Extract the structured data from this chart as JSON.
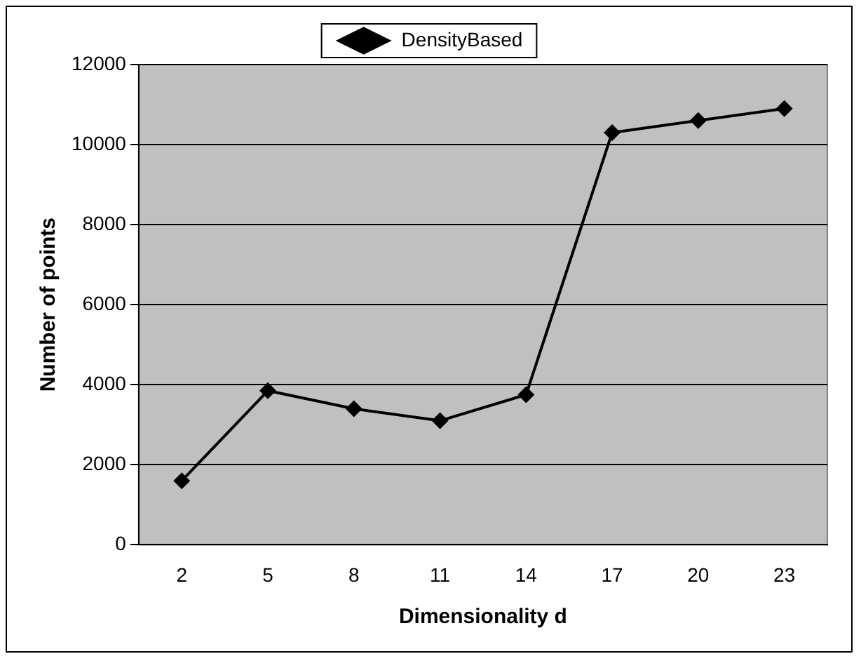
{
  "chart_data": {
    "type": "line",
    "xlabel": "Dimensionality d",
    "ylabel": "Number of points",
    "categories": [
      "2",
      "5",
      "8",
      "11",
      "14",
      "17",
      "20",
      "23"
    ],
    "series": [
      {
        "name": "DensityBased",
        "color": "#000000",
        "values": [
          1600,
          3850,
          3400,
          3100,
          3750,
          10300,
          10600,
          10900
        ]
      }
    ],
    "ylim": [
      0,
      12000
    ],
    "yticks": [
      0,
      2000,
      4000,
      6000,
      8000,
      10000,
      12000
    ],
    "grid": "y",
    "legend": "top",
    "marker": "diamond",
    "line_style": "solid"
  }
}
